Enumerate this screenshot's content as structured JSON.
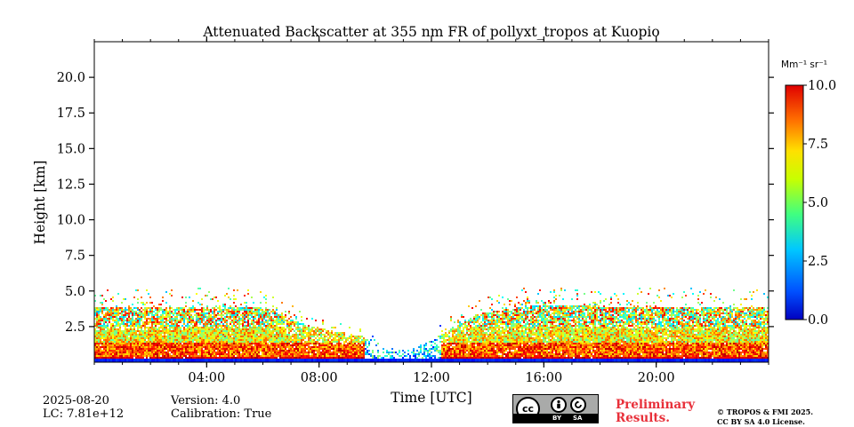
{
  "chart_data": {
    "type": "heatmap",
    "title": "Attenuated Backscatter at 355 nm FR of pollyxt_tropos at Kuopio",
    "xlabel": "Time [UTC]",
    "ylabel": "Height [km]",
    "xlim_hours": [
      0,
      24
    ],
    "ylim_km": [
      0,
      22.5
    ],
    "x_ticks": [
      {
        "hour": 4,
        "label": "04:00"
      },
      {
        "hour": 8,
        "label": "08:00"
      },
      {
        "hour": 12,
        "label": "12:00"
      },
      {
        "hour": 16,
        "label": "16:00"
      },
      {
        "hour": 20,
        "label": "20:00"
      }
    ],
    "y_ticks": [
      {
        "value": 2.5,
        "label": "2.5"
      },
      {
        "value": 5.0,
        "label": "5.0"
      },
      {
        "value": 7.5,
        "label": "7.5"
      },
      {
        "value": 10.0,
        "label": "10.0"
      },
      {
        "value": 12.5,
        "label": "12.5"
      },
      {
        "value": 15.0,
        "label": "15.0"
      },
      {
        "value": 17.5,
        "label": "17.5"
      },
      {
        "value": 20.0,
        "label": "20.0"
      }
    ],
    "colorbar": {
      "label": "Mm⁻¹ sr⁻¹",
      "range": [
        0,
        10
      ],
      "colormap": "jet",
      "ticks": [
        {
          "value": 0.0,
          "label": "0.0"
        },
        {
          "value": 2.5,
          "label": "2.5"
        },
        {
          "value": 5.0,
          "label": "5.0"
        },
        {
          "value": 7.5,
          "label": "7.5"
        },
        {
          "value": 10.0,
          "label": "10.0"
        }
      ]
    },
    "profile_summary": [
      {
        "hour": 0.0,
        "top_km": 5.2
      },
      {
        "hour": 2.0,
        "top_km": 5.2
      },
      {
        "hour": 4.0,
        "top_km": 5.3
      },
      {
        "hour": 6.0,
        "top_km": 5.3
      },
      {
        "hour": 7.5,
        "top_km": 3.5
      },
      {
        "hour": 8.5,
        "top_km": 3.0
      },
      {
        "hour": 9.5,
        "top_km": 2.5
      },
      {
        "hour": 10.5,
        "top_km": 1.0
      },
      {
        "hour": 11.5,
        "top_km": 1.5
      },
      {
        "hour": 12.5,
        "top_km": 3.0
      },
      {
        "hour": 13.5,
        "top_km": 4.5
      },
      {
        "hour": 14.5,
        "top_km": 5.0
      },
      {
        "hour": 16.0,
        "top_km": 5.5
      },
      {
        "hour": 18.0,
        "top_km": 5.3
      },
      {
        "hour": 20.0,
        "top_km": 5.3
      },
      {
        "hour": 22.0,
        "top_km": 5.2
      },
      {
        "hour": 24.0,
        "top_km": 5.2
      }
    ]
  },
  "meta": {
    "date": "2025-08-20",
    "lc": "LC: 7.81e+12",
    "version": "Version: 4.0",
    "calibration": "Calibration: True"
  },
  "license_badge": {
    "cc": "cc",
    "by": "BY",
    "sa": "SA"
  },
  "notice": {
    "line1": "Preliminary",
    "line2": "Results."
  },
  "copyright": {
    "line1": "© TROPOS & FMI 2025.",
    "line2": "CC BY SA 4.0 License."
  }
}
